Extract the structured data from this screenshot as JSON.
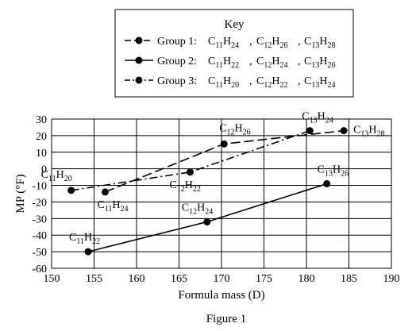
{
  "key": {
    "title": "Key",
    "entries": [
      {
        "prefix": "Group 1:",
        "formulas": [
          [
            "C",
            "11",
            "H",
            "24"
          ],
          [
            "C",
            "12",
            "H",
            "26"
          ],
          [
            "C",
            "13",
            "H",
            "28"
          ]
        ]
      },
      {
        "prefix": "Group 2:",
        "formulas": [
          [
            "C",
            "11",
            "H",
            "22"
          ],
          [
            "C",
            "12",
            "H",
            "24"
          ],
          [
            "C",
            "13",
            "H",
            "26"
          ]
        ]
      },
      {
        "prefix": "Group 3:",
        "formulas": [
          [
            "C",
            "11",
            "H",
            "20"
          ],
          [
            "C",
            "12",
            "H",
            "22"
          ],
          [
            "C",
            "13",
            "H",
            "24"
          ]
        ]
      }
    ]
  },
  "caption": "Figure 1",
  "chart_data": {
    "type": "line",
    "xlabel": "Formula mass (D)",
    "ylabel": "MP (°F)",
    "xlim": [
      150,
      190
    ],
    "ylim": [
      -60,
      30
    ],
    "xticks": [
      150,
      155,
      160,
      165,
      170,
      175,
      180,
      185,
      190
    ],
    "yticks": [
      30,
      20,
      10,
      0,
      -10,
      -20,
      -30,
      -40,
      -50,
      -60
    ],
    "grid": true,
    "legend_position": "top",
    "series": [
      {
        "name": "Group 1",
        "linestyle": "dashed",
        "points": [
          {
            "x": 156.3,
            "y": -14
          },
          {
            "x": 170.3,
            "y": 15
          },
          {
            "x": 184.4,
            "y": 23
          }
        ]
      },
      {
        "name": "Group 2",
        "linestyle": "solid",
        "points": [
          {
            "x": 154.3,
            "y": -50
          },
          {
            "x": 168.3,
            "y": -32
          },
          {
            "x": 182.4,
            "y": -9
          }
        ]
      },
      {
        "name": "Group 3",
        "linestyle": "dashdot",
        "points": [
          {
            "x": 152.3,
            "y": -13
          },
          {
            "x": 166.3,
            "y": -2
          },
          {
            "x": 180.4,
            "y": 23
          }
        ]
      }
    ],
    "point_labels": [
      {
        "formula": [
          "C",
          "11",
          "H",
          "20"
        ],
        "x": 152.3,
        "y": -13
      },
      {
        "formula": [
          "C",
          "11",
          "H",
          "24"
        ],
        "x": 156.3,
        "y": -14
      },
      {
        "formula": [
          "C",
          "11",
          "H",
          "22"
        ],
        "x": 154.3,
        "y": -50
      },
      {
        "formula": [
          "C",
          "12",
          "H",
          "26"
        ],
        "x": 170.3,
        "y": 15
      },
      {
        "formula": [
          "C",
          "12",
          "H",
          "22"
        ],
        "x": 166.3,
        "y": -2
      },
      {
        "formula": [
          "C",
          "12",
          "H",
          "24"
        ],
        "x": 168.3,
        "y": -32
      },
      {
        "formula": [
          "C",
          "13",
          "H",
          "24"
        ],
        "x": 180.4,
        "y": 23
      },
      {
        "formula": [
          "C",
          "13",
          "H",
          "28"
        ],
        "x": 184.4,
        "y": 23
      },
      {
        "formula": [
          "C",
          "13",
          "H",
          "26"
        ],
        "x": 182.4,
        "y": -9
      }
    ]
  }
}
